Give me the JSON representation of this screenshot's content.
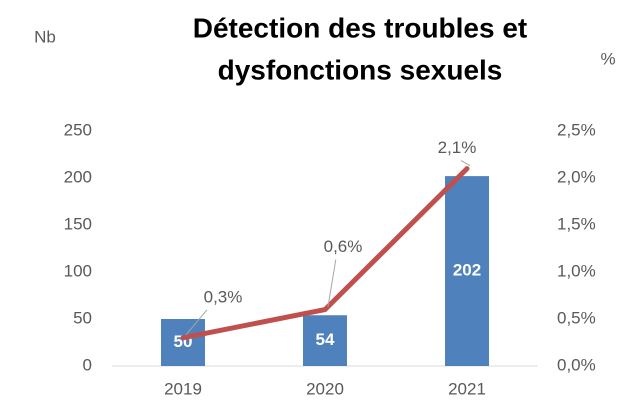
{
  "chart_data": {
    "type": "bar",
    "title": [
      "Détection des troubles et",
      "dysfonctions sexuels"
    ],
    "ylabel": "Nb",
    "y2label": "%",
    "categories": [
      "2019",
      "2020",
      "2021"
    ],
    "series": [
      {
        "type": "bar",
        "color": "#4f81bd",
        "values": [
          50,
          54,
          202
        ]
      },
      {
        "type": "line",
        "axis": "y2",
        "color": "#c0504d",
        "values": [
          0.3,
          0.6,
          2.1
        ],
        "value_labels": [
          "0,3%",
          "0,6%",
          "2,1%"
        ]
      }
    ],
    "ylim": [
      0,
      250
    ],
    "yticks": [
      0,
      50,
      100,
      150,
      200,
      250
    ],
    "y2lim": [
      0,
      2.5
    ],
    "y2ticks": [
      {
        "value": 0,
        "label": "0,0%"
      },
      {
        "value": 0.5,
        "label": "0,5%"
      },
      {
        "value": 1,
        "label": "1,0%"
      },
      {
        "value": 1.5,
        "label": "1,5%"
      },
      {
        "value": 2,
        "label": "2,0%"
      },
      {
        "value": 2.5,
        "label": "2,5%"
      }
    ],
    "grid": false
  }
}
